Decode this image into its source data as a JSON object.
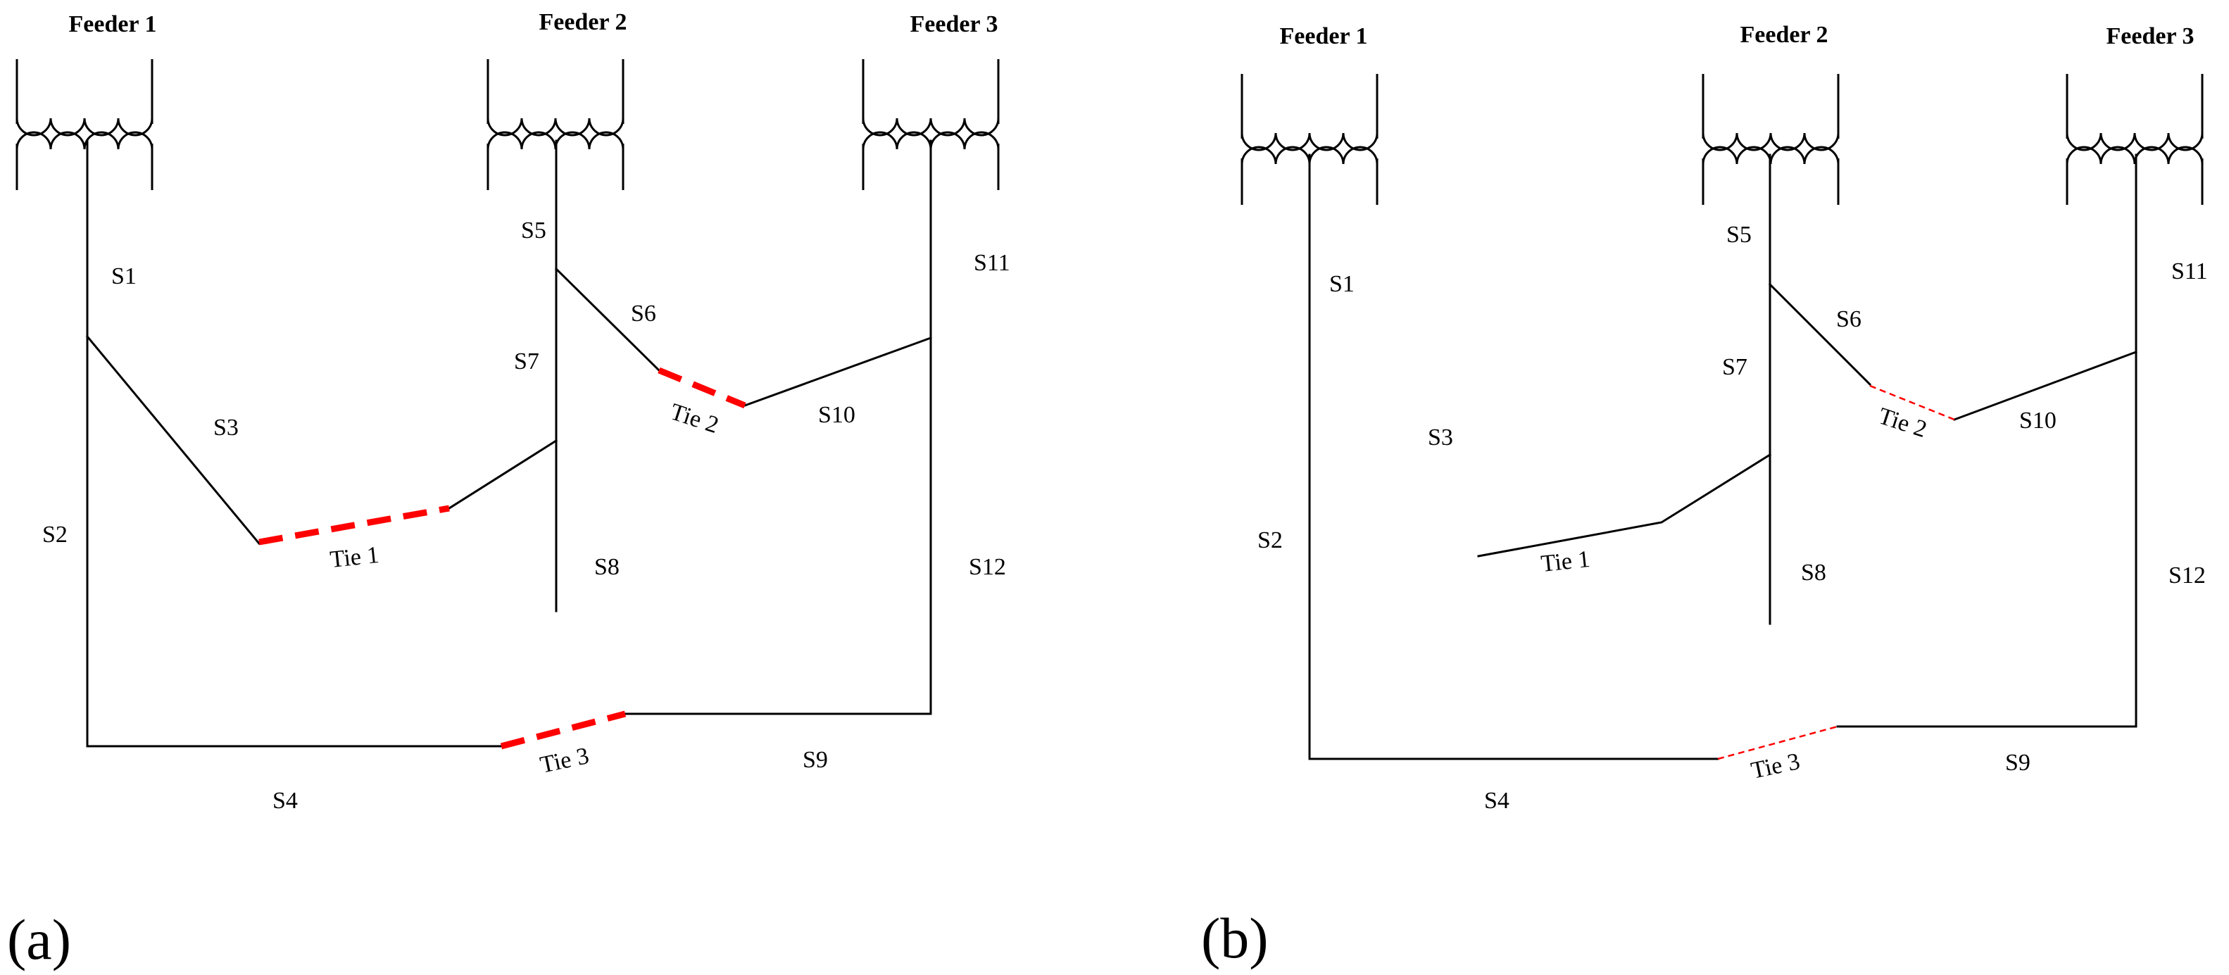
{
  "colors": {
    "line": "#000000",
    "tie_open": "#ff0000",
    "background": "#ffffff"
  },
  "panels": [
    {
      "panel_label": "(a)",
      "feeders": [
        "Feeder 1",
        "Feeder 2",
        "Feeder 3"
      ],
      "sections": [
        "S1",
        "S2",
        "S3",
        "S4",
        "S5",
        "S6",
        "S7",
        "S8",
        "S9",
        "S10",
        "S11",
        "S12"
      ],
      "ties": [
        "Tie 1",
        "Tie 2",
        "Tie 3"
      ]
    },
    {
      "panel_label": "(b)",
      "feeders": [
        "Feeder 1",
        "Feeder 2",
        "Feeder 3"
      ],
      "sections": [
        "S1",
        "S2",
        "S3",
        "S4",
        "S5",
        "S6",
        "S7",
        "S8",
        "S9",
        "S10",
        "S11",
        "S12"
      ],
      "ties": [
        "Tie 1",
        "Tie 2",
        "Tie 3"
      ]
    }
  ]
}
